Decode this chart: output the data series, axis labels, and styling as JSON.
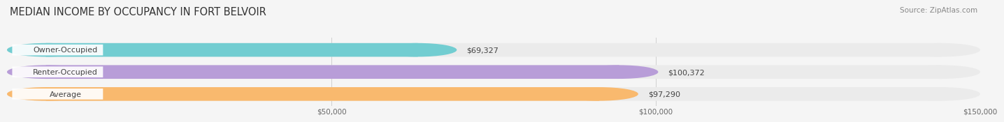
{
  "title": "MEDIAN INCOME BY OCCUPANCY IN FORT BELVOIR",
  "source": "Source: ZipAtlas.com",
  "categories": [
    "Owner-Occupied",
    "Renter-Occupied",
    "Average"
  ],
  "values": [
    69327,
    100372,
    97290
  ],
  "bar_colors": [
    "#72cdd1",
    "#b89dd8",
    "#f9b96e"
  ],
  "value_labels": [
    "$69,327",
    "$100,372",
    "$97,290"
  ],
  "xlim": [
    0,
    150000
  ],
  "x_max_display": 160000,
  "xtick_values": [
    50000,
    100000,
    150000
  ],
  "xtick_labels": [
    "$50,000",
    "$100,000",
    "$150,000"
  ],
  "background_color": "#f5f5f5",
  "bar_background_color": "#ebebeb",
  "bar_border_color": "#d8d8d8",
  "title_fontsize": 10.5,
  "source_fontsize": 7.5,
  "bar_height": 0.62,
  "bar_label_fontsize": 8.0,
  "value_label_fontsize": 8.0,
  "label_pill_color": "#ffffff",
  "grid_color": "#d0d0d0"
}
